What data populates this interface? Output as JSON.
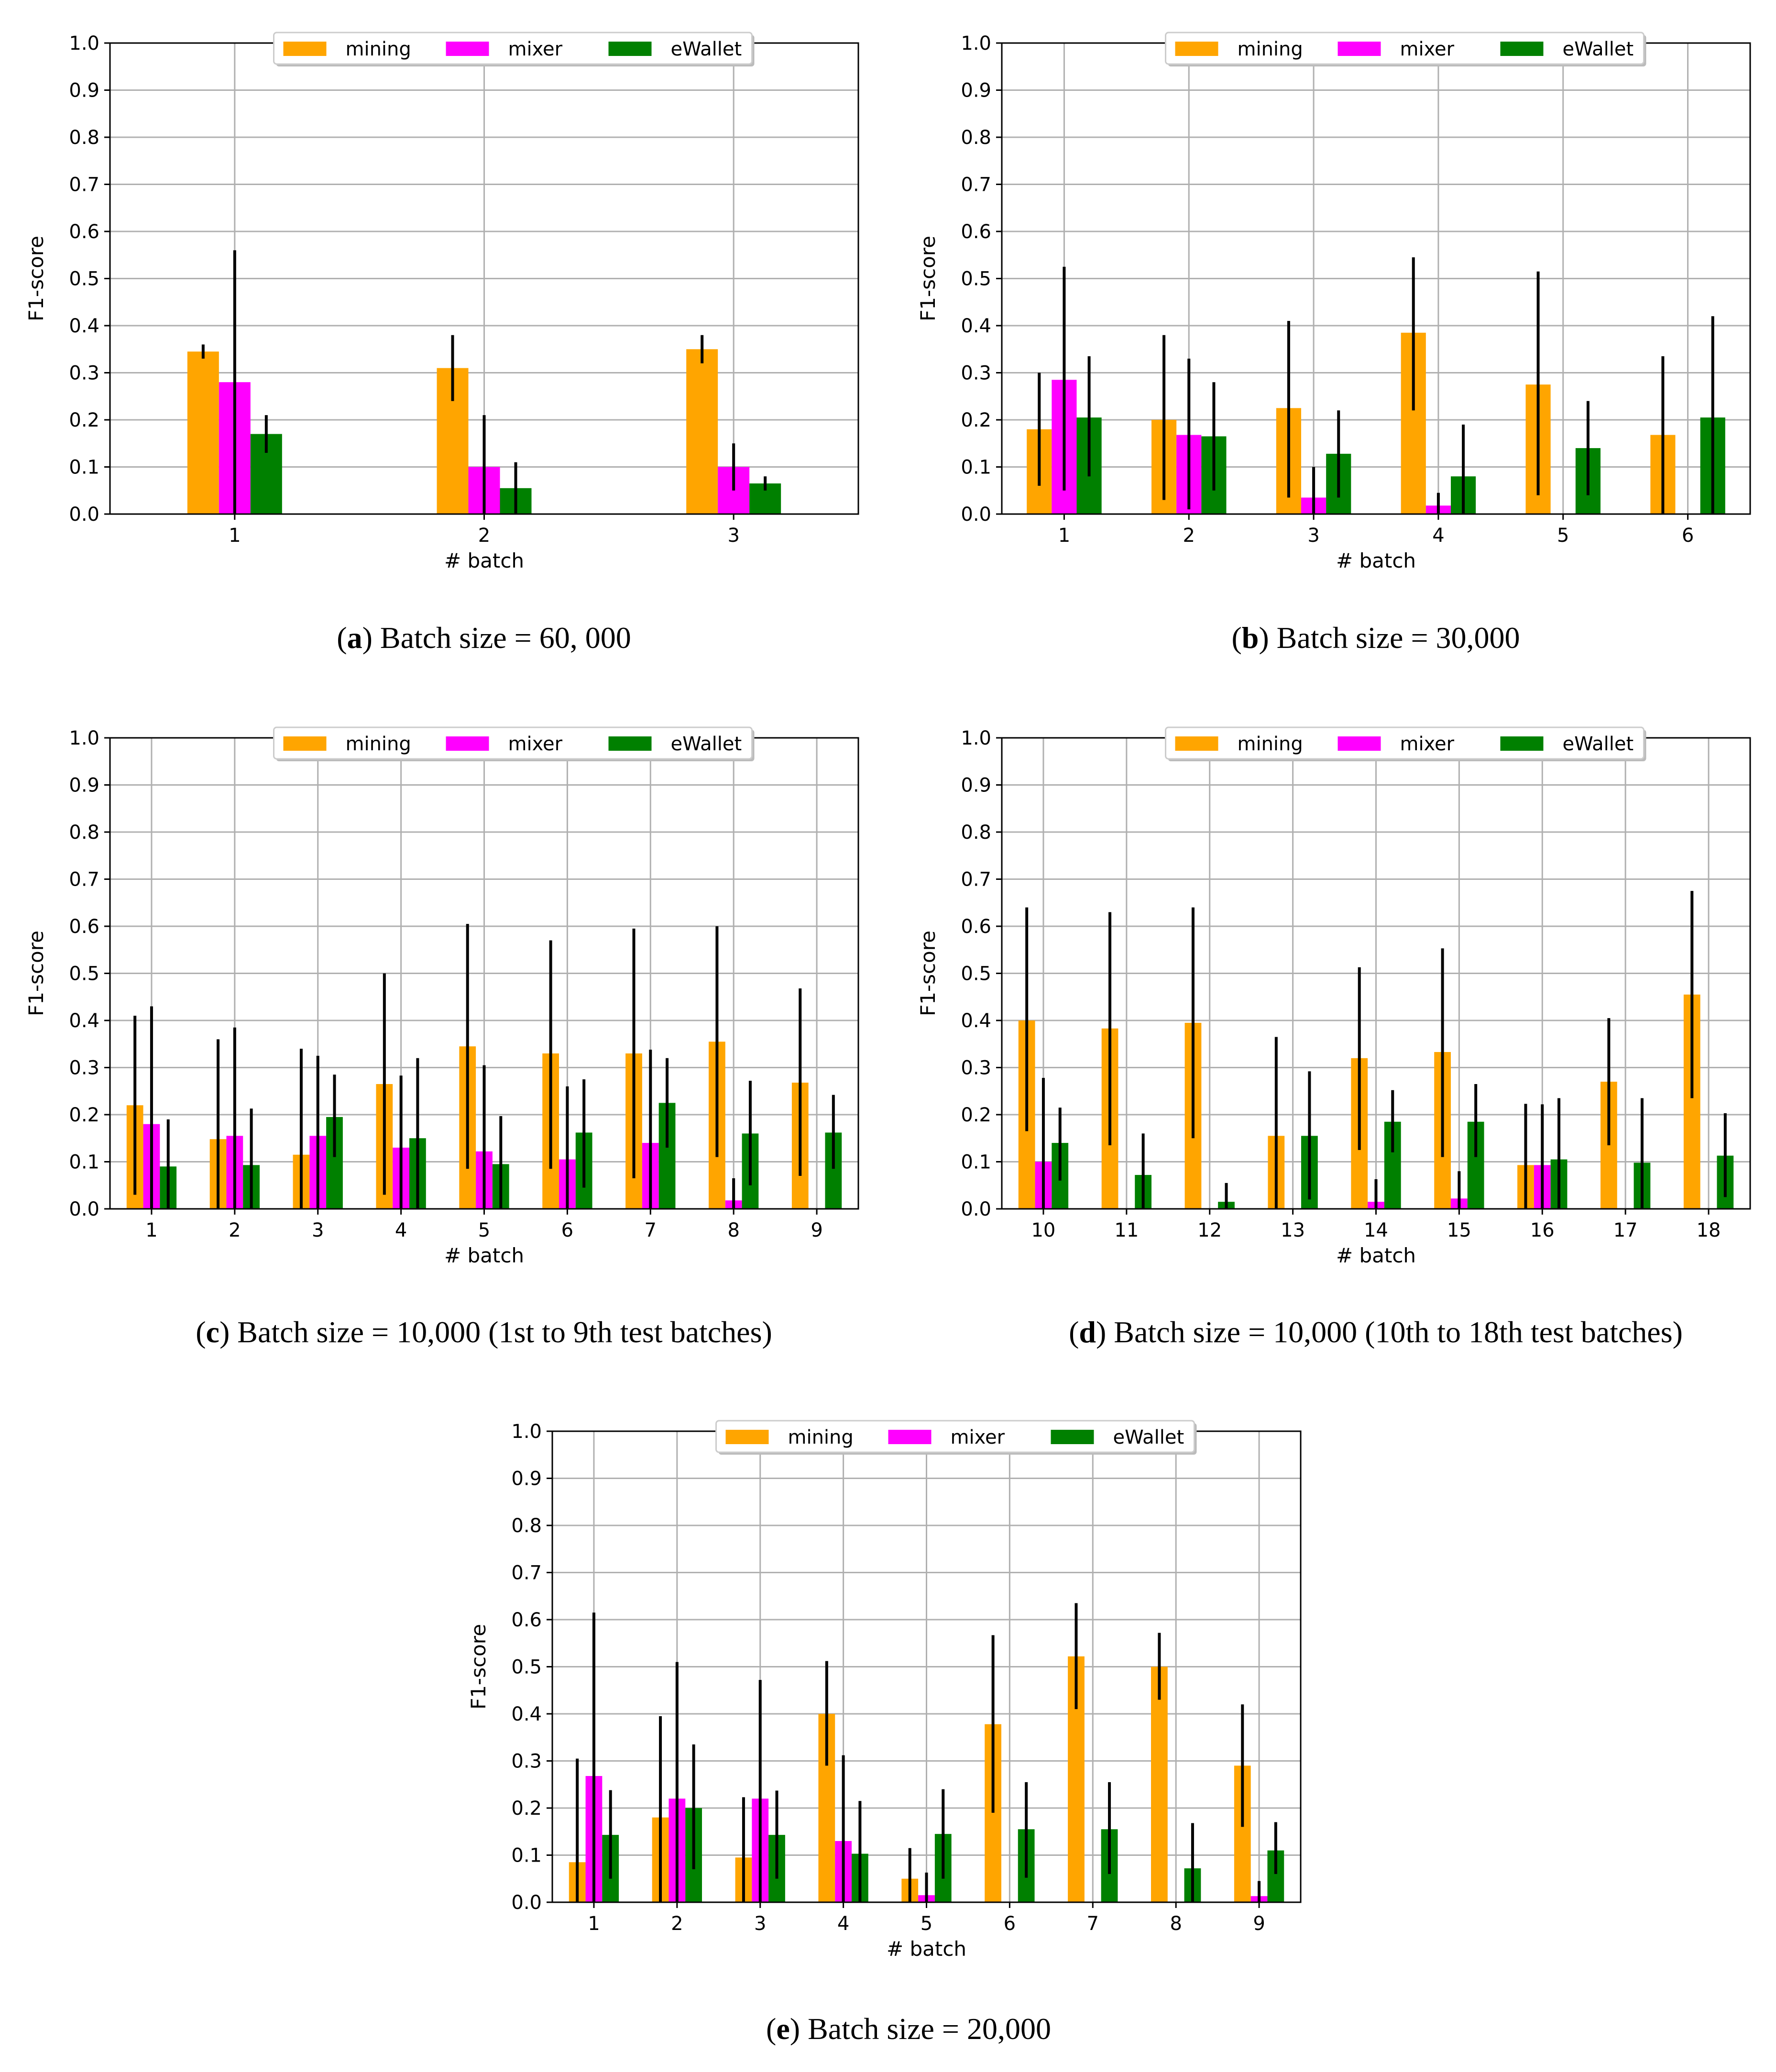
{
  "colors": {
    "mining": "#ffa500",
    "mixer": "#ff00ff",
    "eWallet": "#008000",
    "grid": "#b0b0b0",
    "error": "#000000"
  },
  "legend": [
    "mining",
    "mixer",
    "eWallet"
  ],
  "chart_data": [
    {
      "type": "bar",
      "id": "a",
      "caption_letter": "a",
      "caption_text": ") Batch size = 60, 000",
      "xlabel": "# batch",
      "ylabel": "F1-score",
      "ylim": [
        0,
        1
      ],
      "yticks": [
        "0.0",
        "0.1",
        "0.2",
        "0.3",
        "0.4",
        "0.5",
        "0.6",
        "0.7",
        "0.8",
        "0.9",
        "1.0"
      ],
      "categories": [
        "1",
        "2",
        "3"
      ],
      "series": [
        {
          "name": "mining",
          "values": [
            0.345,
            0.31,
            0.35
          ],
          "err_low": [
            0.33,
            0.24,
            0.32
          ],
          "err_high": [
            0.36,
            0.38,
            0.38
          ]
        },
        {
          "name": "mixer",
          "values": [
            0.28,
            0.1,
            0.1
          ],
          "err_low": [
            0.0,
            0.0,
            0.05
          ],
          "err_high": [
            0.56,
            0.21,
            0.15
          ]
        },
        {
          "name": "eWallet",
          "values": [
            0.17,
            0.055,
            0.065
          ],
          "err_low": [
            0.13,
            0.0,
            0.05
          ],
          "err_high": [
            0.21,
            0.11,
            0.08
          ]
        }
      ]
    },
    {
      "type": "bar",
      "id": "b",
      "caption_letter": "b",
      "caption_text": ") Batch size = 30,000",
      "xlabel": "# batch",
      "ylabel": "F1-score",
      "ylim": [
        0,
        1
      ],
      "yticks": [
        "0.0",
        "0.1",
        "0.2",
        "0.3",
        "0.4",
        "0.5",
        "0.6",
        "0.7",
        "0.8",
        "0.9",
        "1.0"
      ],
      "categories": [
        "1",
        "2",
        "3",
        "4",
        "5",
        "6"
      ],
      "series": [
        {
          "name": "mining",
          "values": [
            0.18,
            0.2,
            0.225,
            0.385,
            0.275,
            0.168
          ],
          "err_low": [
            0.06,
            0.03,
            0.035,
            0.22,
            0.04,
            0.0
          ],
          "err_high": [
            0.3,
            0.38,
            0.41,
            0.545,
            0.515,
            0.335
          ]
        },
        {
          "name": "mixer",
          "values": [
            0.285,
            0.168,
            0.035,
            0.018,
            0.0,
            0.0
          ],
          "err_low": [
            0.05,
            0.01,
            0.0,
            0.0,
            0.0,
            0.0
          ],
          "err_high": [
            0.525,
            0.33,
            0.1,
            0.045,
            0.0,
            0.0
          ]
        },
        {
          "name": "eWallet",
          "values": [
            0.205,
            0.165,
            0.128,
            0.08,
            0.14,
            0.205
          ],
          "err_low": [
            0.08,
            0.05,
            0.035,
            0.0,
            0.04,
            0.0
          ],
          "err_high": [
            0.335,
            0.28,
            0.22,
            0.19,
            0.24,
            0.42
          ]
        }
      ]
    },
    {
      "type": "bar",
      "id": "c",
      "caption_letter": "c",
      "caption_text": ") Batch size = 10,000 (1st to 9th test batches)",
      "xlabel": "# batch",
      "ylabel": "F1-score",
      "ylim": [
        0,
        1
      ],
      "yticks": [
        "0.0",
        "0.1",
        "0.2",
        "0.3",
        "0.4",
        "0.5",
        "0.6",
        "0.7",
        "0.8",
        "0.9",
        "1.0"
      ],
      "categories": [
        "1",
        "2",
        "3",
        "4",
        "5",
        "6",
        "7",
        "8",
        "9"
      ],
      "series": [
        {
          "name": "mining",
          "values": [
            0.22,
            0.148,
            0.115,
            0.265,
            0.345,
            0.33,
            0.33,
            0.355,
            0.268
          ],
          "err_low": [
            0.03,
            0.0,
            0.0,
            0.03,
            0.085,
            0.085,
            0.065,
            0.11,
            0.07
          ],
          "err_high": [
            0.41,
            0.36,
            0.34,
            0.5,
            0.605,
            0.57,
            0.595,
            0.6,
            0.468
          ]
        },
        {
          "name": "mixer",
          "values": [
            0.18,
            0.155,
            0.155,
            0.13,
            0.122,
            0.105,
            0.14,
            0.018,
            0.0
          ],
          "err_low": [
            0.0,
            0.0,
            0.0,
            0.0,
            0.0,
            0.0,
            0.0,
            0.0,
            0.0
          ],
          "err_high": [
            0.43,
            0.385,
            0.325,
            0.283,
            0.305,
            0.26,
            0.338,
            0.065,
            0.0
          ]
        },
        {
          "name": "eWallet",
          "values": [
            0.09,
            0.093,
            0.195,
            0.15,
            0.095,
            0.162,
            0.225,
            0.16,
            0.162
          ],
          "err_low": [
            0.0,
            0.0,
            0.11,
            0.0,
            0.0,
            0.045,
            0.13,
            0.05,
            0.085
          ],
          "err_high": [
            0.19,
            0.213,
            0.285,
            0.32,
            0.197,
            0.275,
            0.32,
            0.272,
            0.242
          ]
        }
      ]
    },
    {
      "type": "bar",
      "id": "d",
      "caption_letter": "d",
      "caption_text": ") Batch size = 10,000 (10th to 18th test batches)",
      "xlabel": "# batch",
      "ylabel": "F1-score",
      "ylim": [
        0,
        1
      ],
      "yticks": [
        "0.0",
        "0.1",
        "0.2",
        "0.3",
        "0.4",
        "0.5",
        "0.6",
        "0.7",
        "0.8",
        "0.9",
        "1.0"
      ],
      "categories": [
        "10",
        "11",
        "12",
        "13",
        "14",
        "15",
        "16",
        "17",
        "18"
      ],
      "series": [
        {
          "name": "mining",
          "values": [
            0.4,
            0.383,
            0.395,
            0.155,
            0.32,
            0.333,
            0.093,
            0.27,
            0.455
          ],
          "err_low": [
            0.165,
            0.135,
            0.15,
            0.0,
            0.125,
            0.11,
            0.0,
            0.135,
            0.235
          ],
          "err_high": [
            0.64,
            0.63,
            0.64,
            0.365,
            0.513,
            0.553,
            0.223,
            0.405,
            0.675
          ]
        },
        {
          "name": "mixer",
          "values": [
            0.1,
            0.0,
            0.0,
            0.0,
            0.015,
            0.022,
            0.093,
            0.0,
            0.0
          ],
          "err_low": [
            0.0,
            0.0,
            0.0,
            0.0,
            0.0,
            0.0,
            0.0,
            0.0,
            0.0
          ],
          "err_high": [
            0.278,
            0.0,
            0.0,
            0.0,
            0.063,
            0.08,
            0.222,
            0.0,
            0.0
          ]
        },
        {
          "name": "eWallet",
          "values": [
            0.14,
            0.072,
            0.015,
            0.155,
            0.185,
            0.185,
            0.105,
            0.098,
            0.113
          ],
          "err_low": [
            0.06,
            0.0,
            0.0,
            0.02,
            0.12,
            0.11,
            0.0,
            0.0,
            0.025
          ],
          "err_high": [
            0.215,
            0.16,
            0.055,
            0.292,
            0.252,
            0.265,
            0.235,
            0.235,
            0.203
          ]
        }
      ]
    },
    {
      "type": "bar",
      "id": "e",
      "caption_letter": "e",
      "caption_text": ") Batch size = 20,000",
      "xlabel": "# batch",
      "ylabel": "F1-score",
      "ylim": [
        0,
        1
      ],
      "yticks": [
        "0.0",
        "0.1",
        "0.2",
        "0.3",
        "0.4",
        "0.5",
        "0.6",
        "0.7",
        "0.8",
        "0.9",
        "1.0"
      ],
      "categories": [
        "1",
        "2",
        "3",
        "4",
        "5",
        "6",
        "7",
        "8",
        "9"
      ],
      "series": [
        {
          "name": "mining",
          "values": [
            0.085,
            0.18,
            0.095,
            0.4,
            0.05,
            0.378,
            0.522,
            0.5,
            0.29
          ],
          "err_low": [
            0.0,
            0.0,
            0.0,
            0.29,
            0.0,
            0.19,
            0.41,
            0.43,
            0.16
          ],
          "err_high": [
            0.305,
            0.395,
            0.223,
            0.512,
            0.115,
            0.567,
            0.635,
            0.572,
            0.42
          ]
        },
        {
          "name": "mixer",
          "values": [
            0.268,
            0.22,
            0.22,
            0.13,
            0.015,
            0.0,
            0.0,
            0.0,
            0.013
          ],
          "err_low": [
            0.0,
            0.0,
            0.0,
            0.0,
            0.0,
            0.0,
            0.0,
            0.0,
            0.0
          ],
          "err_high": [
            0.615,
            0.51,
            0.472,
            0.312,
            0.063,
            0.0,
            0.0,
            0.0,
            0.045
          ]
        },
        {
          "name": "eWallet",
          "values": [
            0.143,
            0.2,
            0.143,
            0.103,
            0.145,
            0.155,
            0.155,
            0.072,
            0.11
          ],
          "err_low": [
            0.05,
            0.07,
            0.05,
            0.0,
            0.05,
            0.052,
            0.06,
            0.0,
            0.06
          ],
          "err_high": [
            0.238,
            0.335,
            0.237,
            0.215,
            0.24,
            0.255,
            0.255,
            0.168,
            0.17
          ]
        }
      ]
    }
  ]
}
